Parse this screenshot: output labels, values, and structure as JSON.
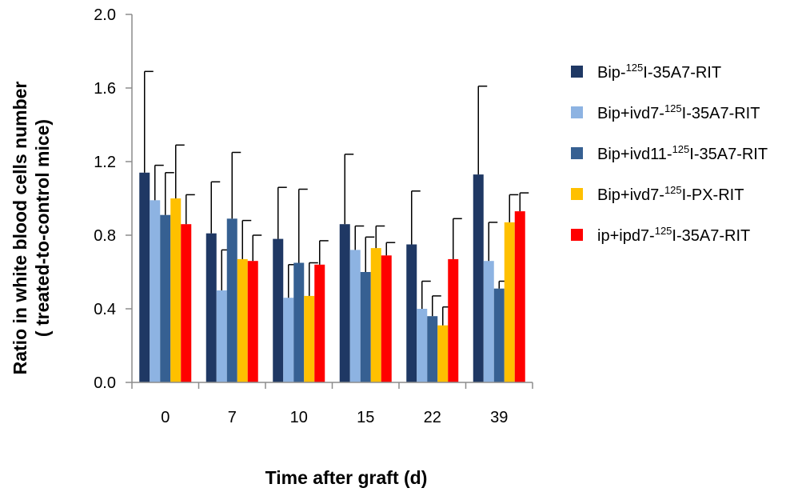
{
  "chart_data": {
    "type": "bar",
    "title": "",
    "xlabel": "Time after graft (d)",
    "ylabel_line1": "Ratio in white blood cells number",
    "ylabel_line2": "( treated-to-control mice)",
    "ylim": [
      0,
      2.0
    ],
    "yticks": [
      "0.0",
      "0.4",
      "0.8",
      "1.2",
      "1.6",
      "2.0"
    ],
    "ytick_values": [
      0,
      0.4,
      0.8,
      1.2,
      1.6,
      2.0
    ],
    "categories": [
      "0",
      "7",
      "10",
      "15",
      "22",
      "39"
    ],
    "error_bars": "upper",
    "legend_position": "right",
    "series": [
      {
        "name": "Bip-125I-35A7-RIT",
        "name_parts": [
          "Bip-",
          "125",
          "I-35A7-RIT"
        ],
        "color": "#1f3864",
        "values": [
          1.14,
          0.81,
          0.78,
          0.86,
          0.75,
          1.13
        ],
        "errors": [
          0.55,
          0.28,
          0.28,
          0.38,
          0.29,
          0.48
        ]
      },
      {
        "name": "Bip+ivd7-125I-35A7-RIT",
        "name_parts": [
          "Bip+ivd7-",
          "125",
          "I-35A7-RIT"
        ],
        "color": "#8db3e2",
        "values": [
          0.99,
          0.5,
          0.46,
          0.72,
          0.4,
          0.66
        ],
        "errors": [
          0.19,
          0.22,
          0.18,
          0.13,
          0.15,
          0.21
        ]
      },
      {
        "name": "Bip+ivd11-125I-35A7-RIT",
        "name_parts": [
          "Bip+ivd11-",
          "125",
          "I-35A7-RIT"
        ],
        "color": "#366092",
        "values": [
          0.91,
          0.89,
          0.65,
          0.6,
          0.36,
          0.51
        ],
        "errors": [
          0.23,
          0.36,
          0.4,
          0.19,
          0.11,
          0.04
        ]
      },
      {
        "name": "Bip+ivd7-125I-PX-RIT",
        "name_parts": [
          "Bip+ivd7-",
          "125",
          "I-PX-RIT"
        ],
        "color": "#ffc000",
        "values": [
          1.0,
          0.67,
          0.47,
          0.73,
          0.31,
          0.87
        ],
        "errors": [
          0.29,
          0.21,
          0.18,
          0.12,
          0.1,
          0.15
        ]
      },
      {
        "name": "ip+ipd7-125I-35A7-RIT",
        "name_parts": [
          "ip+ipd7-",
          "125",
          "I-35A7-RIT"
        ],
        "color": "#ff0000",
        "values": [
          0.86,
          0.66,
          0.64,
          0.69,
          0.67,
          0.93
        ],
        "errors": [
          0.16,
          0.14,
          0.13,
          0.07,
          0.22,
          0.1
        ]
      }
    ]
  }
}
